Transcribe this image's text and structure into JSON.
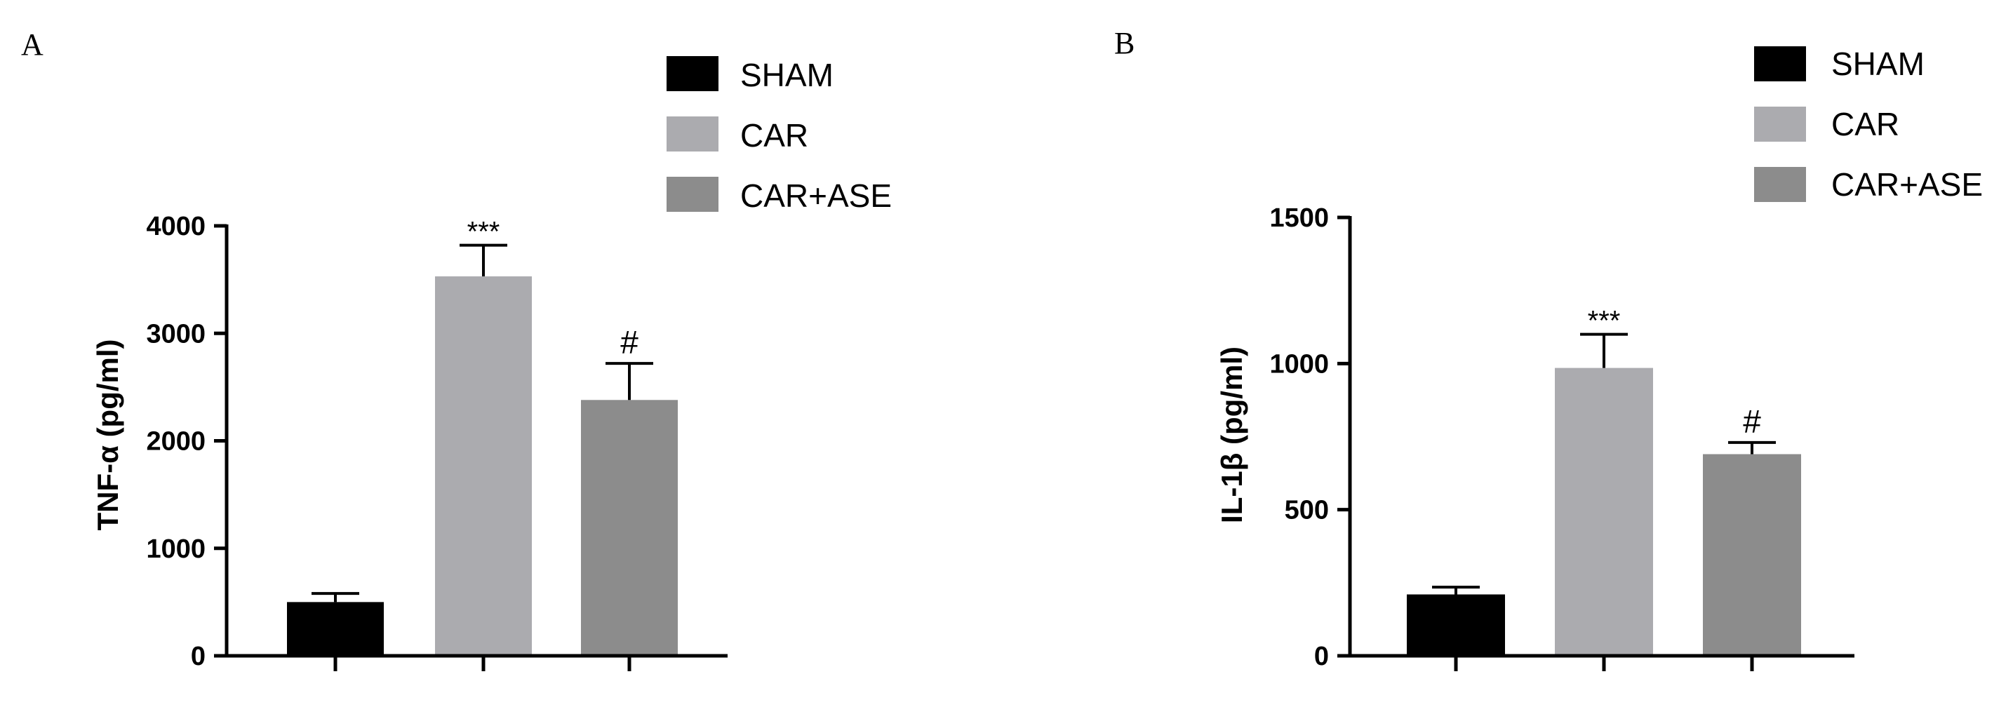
{
  "legend": {
    "items": [
      {
        "label": "SHAM",
        "color": "#000000"
      },
      {
        "label": "CAR",
        "color": "#ababaf"
      },
      {
        "label": "CAR+ASE",
        "color": "#8c8c8c"
      }
    ]
  },
  "chart_data": [
    {
      "type": "bar",
      "panel": "A",
      "title": "",
      "ylabel": "TNF-α (pg/ml)",
      "xlabel": "",
      "categories": [
        "SHAM",
        "CAR",
        "CAR+ASE"
      ],
      "values": [
        500,
        3530,
        2380
      ],
      "errors": [
        80,
        290,
        340
      ],
      "annotations": [
        "",
        "***",
        "#"
      ],
      "colors": [
        "#000000",
        "#ababaf",
        "#8c8c8c"
      ],
      "ylim": [
        0,
        4000
      ],
      "yticks": [
        "0",
        "1000",
        "2000",
        "3000",
        "4000"
      ],
      "grid": false,
      "legend_position": "top-right"
    },
    {
      "type": "bar",
      "panel": "B",
      "title": "",
      "ylabel": "IL-1β (pg/ml)",
      "xlabel": "",
      "categories": [
        "SHAM",
        "CAR",
        "CAR+ASE"
      ],
      "values": [
        210,
        985,
        690
      ],
      "errors": [
        25,
        115,
        40
      ],
      "annotations": [
        "",
        "***",
        "#"
      ],
      "colors": [
        "#000000",
        "#ababaf",
        "#8c8c8c"
      ],
      "ylim": [
        0,
        1500
      ],
      "yticks": [
        "0",
        "500",
        "1000",
        "1500"
      ],
      "grid": false,
      "legend_position": "top-right"
    }
  ]
}
